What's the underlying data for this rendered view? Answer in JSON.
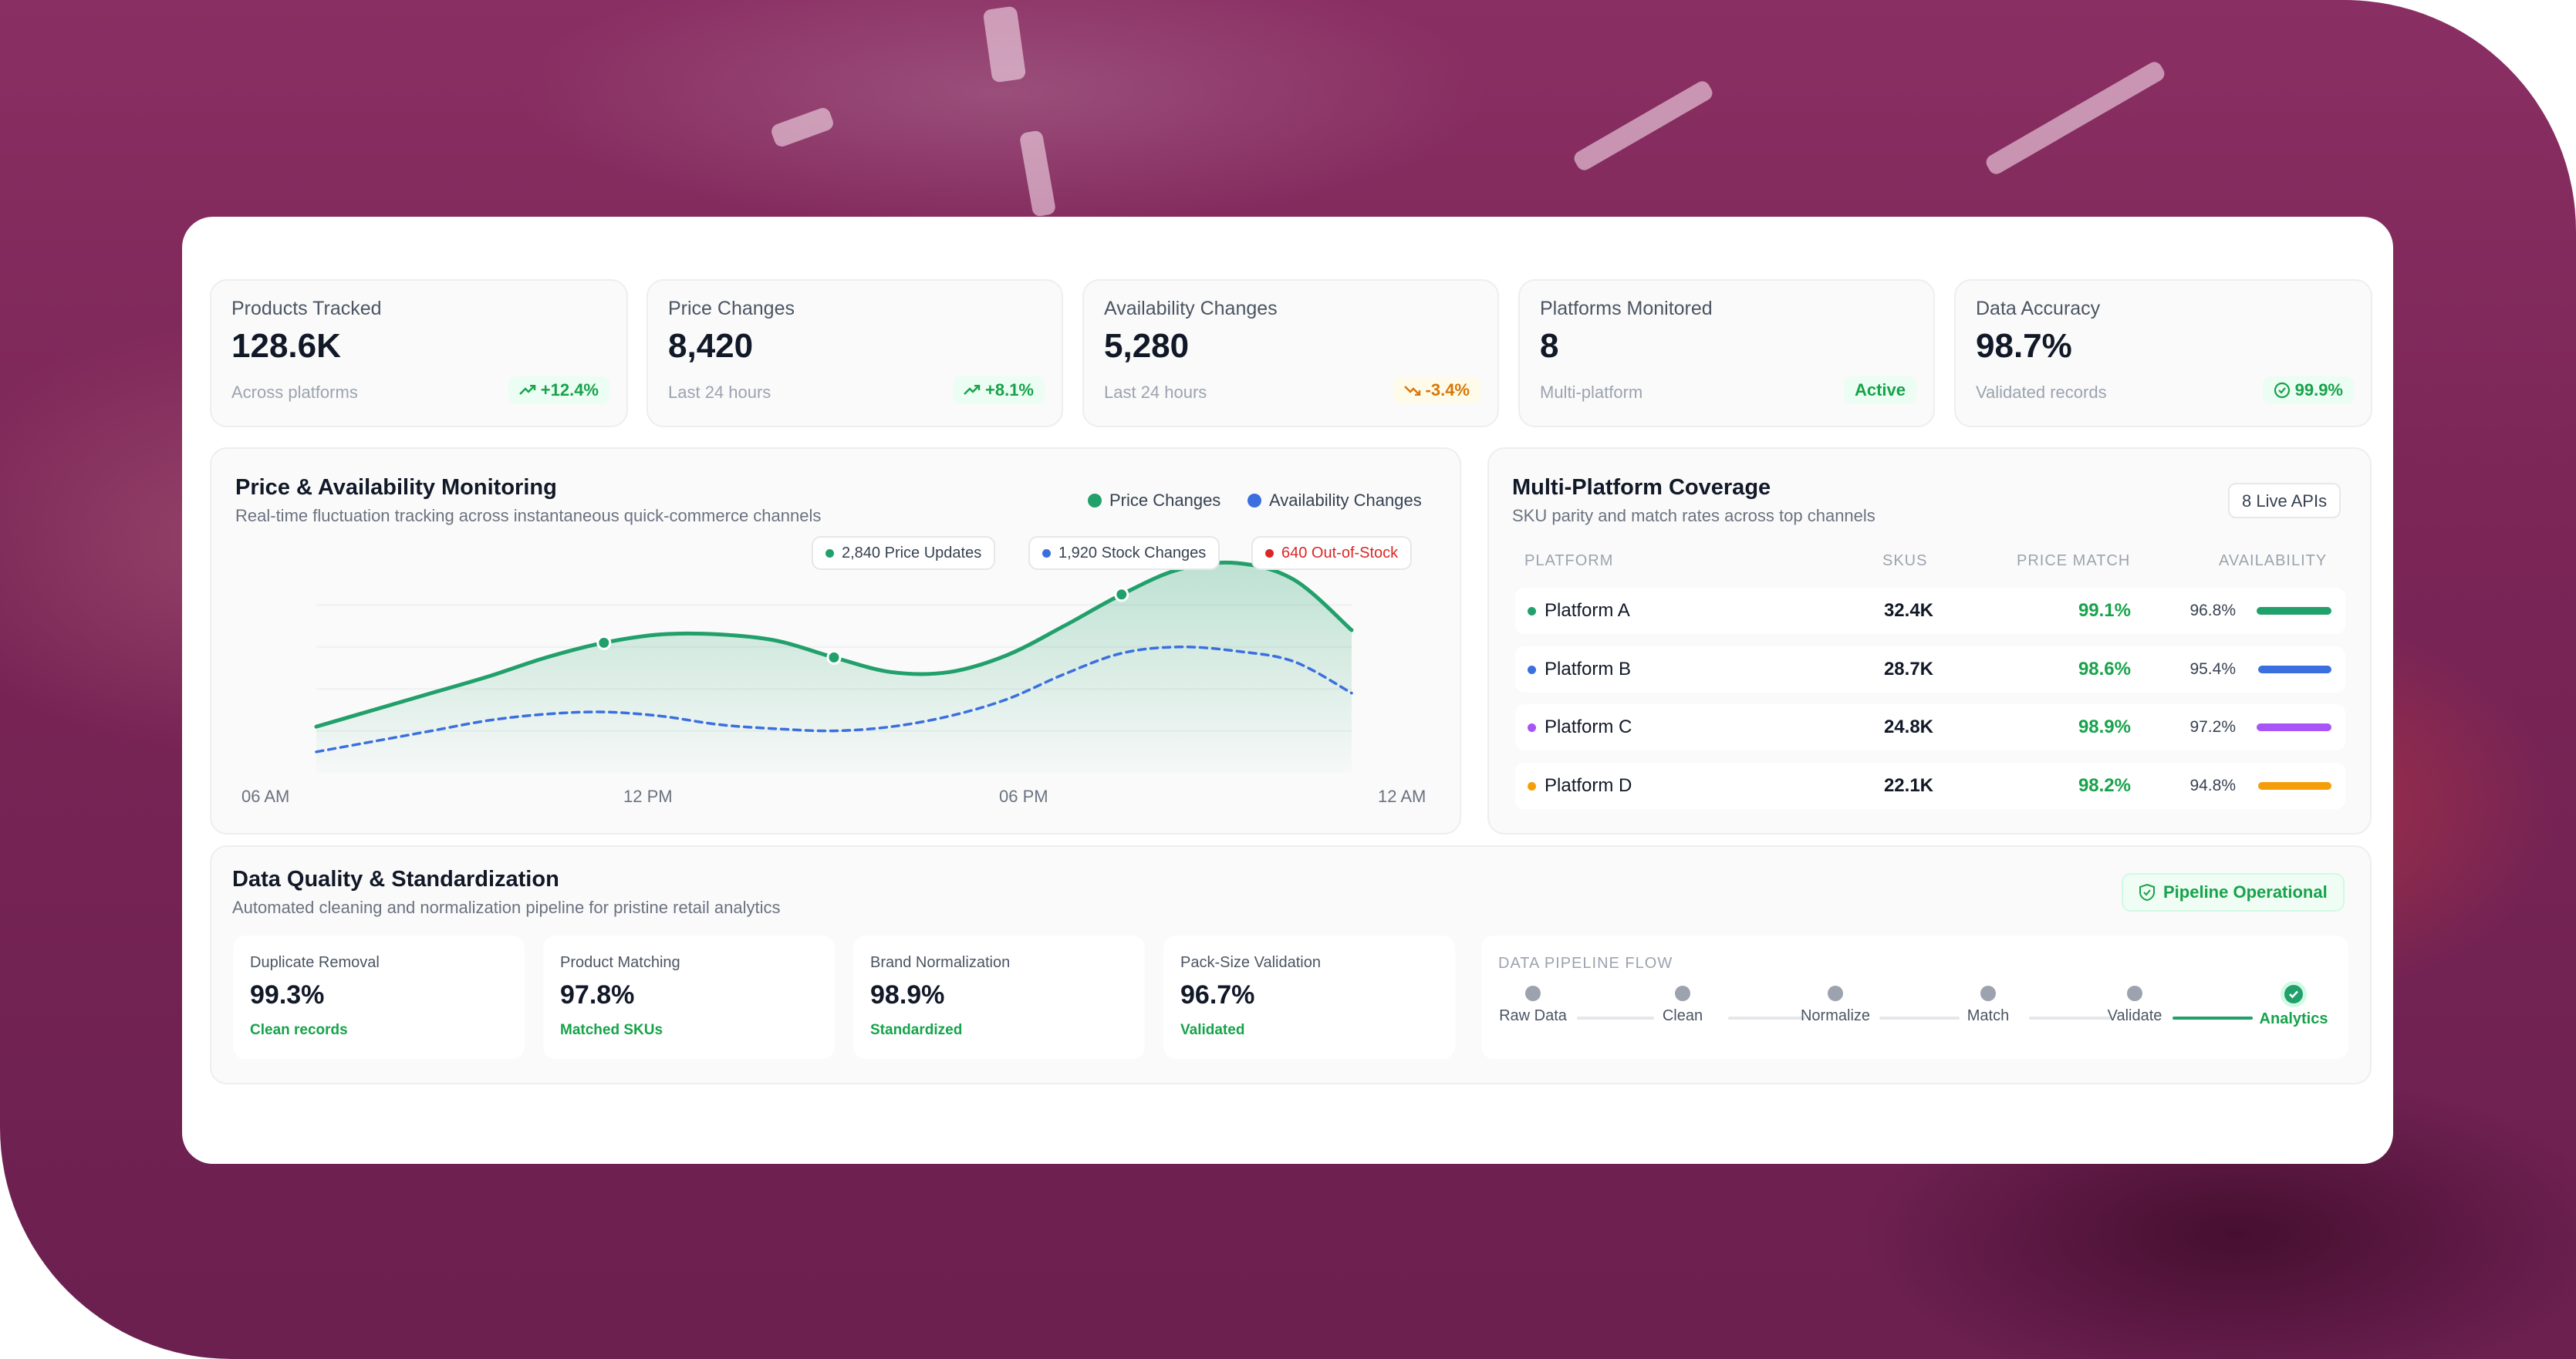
{
  "stats": [
    {
      "label": "Products Tracked",
      "value": "128.6K",
      "sub": "Across platforms",
      "badge": "+12.4%",
      "badge_icon": "trend-up-icon"
    },
    {
      "label": "Price Changes",
      "value": "8,420",
      "sub": "Last 24 hours",
      "badge": "+8.1%",
      "badge_icon": "trend-up-icon"
    },
    {
      "label": "Availability Changes",
      "value": "5,280",
      "sub": "Last 24 hours",
      "badge": "-3.4%",
      "badge_icon": "trend-down-icon"
    },
    {
      "label": "Platforms Monitored",
      "value": "8",
      "sub": "Multi-platform",
      "badge": "Active",
      "badge_icon": ""
    },
    {
      "label": "Data Accuracy",
      "value": "98.7%",
      "sub": "Validated records",
      "badge": "99.9%",
      "badge_icon": "check-circle-icon"
    }
  ],
  "monitoring": {
    "title": "Price & Availability Monitoring",
    "subtitle": "Real-time fluctuation tracking across instantaneous quick-commerce channels",
    "legend": [
      {
        "name": "Price Changes",
        "color": "#22a06b"
      },
      {
        "name": "Availability Changes",
        "color": "#3b6fe0"
      }
    ],
    "chips": [
      {
        "text": "2,840 Price Updates",
        "color": "#22a06b"
      },
      {
        "text": "1,920 Stock Changes",
        "color": "#3b6fe0"
      },
      {
        "text": "640 Out-of-Stock",
        "color": "#dc2626"
      }
    ]
  },
  "chart_data": {
    "type": "line",
    "x": [
      0,
      1,
      2,
      3,
      4,
      5,
      6,
      7,
      8,
      9,
      10,
      11,
      12,
      13,
      14,
      15,
      16,
      17,
      18
    ],
    "tick_labels": [
      "06 AM",
      "12 PM",
      "06 PM",
      "12 AM"
    ],
    "title": "",
    "xlabel": "",
    "ylabel": "",
    "grid": true,
    "ylim": [
      0,
      100
    ],
    "series": [
      {
        "name": "Price Changes",
        "color": "#22a06b",
        "style": "solid",
        "fill": true,
        "values": [
          22,
          30,
          38,
          46,
          55,
          62,
          66,
          66,
          63,
          55,
          48,
          48,
          56,
          70,
          85,
          97,
          100,
          92,
          68
        ]
      },
      {
        "name": "Availability Changes",
        "color": "#3b6fe0",
        "style": "dashed",
        "fill": false,
        "values": [
          10,
          15,
          20,
          25,
          28,
          29,
          27,
          23,
          21,
          20,
          22,
          27,
          35,
          47,
          57,
          60,
          58,
          53,
          38
        ]
      }
    ],
    "markers": [
      {
        "series": 0,
        "x": 5
      },
      {
        "series": 0,
        "x": 9
      },
      {
        "series": 0,
        "x": 14
      }
    ]
  },
  "coverage": {
    "title": "Multi-Platform Coverage",
    "subtitle": "SKU parity and match rates across top channels",
    "badge": "8 Live APIs",
    "headers": {
      "platform": "PLATFORM",
      "skus": "SKUS",
      "price_match": "PRICE MATCH",
      "availability": "AVAILABILITY"
    },
    "rows": [
      {
        "platform": "Platform A",
        "skus": "32.4K",
        "price_match": "99.1%",
        "availability": "96.8%",
        "availability_value": 96.8,
        "color": "#22a06b"
      },
      {
        "platform": "Platform B",
        "skus": "28.7K",
        "price_match": "98.6%",
        "availability": "95.4%",
        "availability_value": 95.4,
        "color": "#3b6fe0"
      },
      {
        "platform": "Platform C",
        "skus": "24.8K",
        "price_match": "98.9%",
        "availability": "97.2%",
        "availability_value": 97.2,
        "color": "#a855f7"
      },
      {
        "platform": "Platform D",
        "skus": "22.1K",
        "price_match": "98.2%",
        "availability": "94.8%",
        "availability_value": 94.8,
        "color": "#f59e0b"
      }
    ]
  },
  "quality": {
    "title": "Data Quality & Standardization",
    "subtitle": "Automated cleaning and normalization pipeline for pristine retail analytics",
    "status": "Pipeline Operational",
    "metrics": [
      {
        "label": "Duplicate Removal",
        "value": "99.3%",
        "sub": "Clean records"
      },
      {
        "label": "Product Matching",
        "value": "97.8%",
        "sub": "Matched SKUs"
      },
      {
        "label": "Brand Normalization",
        "value": "98.9%",
        "sub": "Standardized"
      },
      {
        "label": "Pack-Size Validation",
        "value": "96.7%",
        "sub": "Validated"
      }
    ],
    "pipeline": {
      "title": "DATA PIPELINE FLOW",
      "steps": [
        "Raw Data",
        "Clean",
        "Normalize",
        "Match",
        "Validate",
        "Analytics"
      ],
      "active_step": "Analytics"
    }
  }
}
